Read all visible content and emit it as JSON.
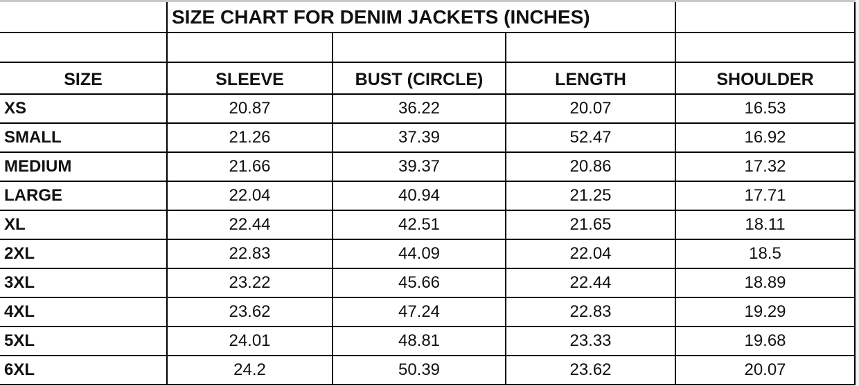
{
  "title": "SIZE CHART FOR DENIM JACKETS (INCHES)",
  "headers": [
    "SIZE",
    "SLEEVE",
    "BUST (CIRCLE)",
    "LENGTH",
    "SHOULDER"
  ],
  "rows": [
    [
      "XS",
      "20.87",
      "36.22",
      "20.07",
      "16.53"
    ],
    [
      "SMALL",
      "21.26",
      "37.39",
      "52.47",
      "16.92"
    ],
    [
      "MEDIUM",
      "21.66",
      "39.37",
      "20.86",
      "17.32"
    ],
    [
      "LARGE",
      "22.04",
      "40.94",
      "21.25",
      "17.71"
    ],
    [
      "XL",
      "22.44",
      "42.51",
      "21.65",
      "18.11"
    ],
    [
      "2XL",
      "22.83",
      "44.09",
      "22.04",
      "18.5"
    ],
    [
      "3XL",
      "23.22",
      "45.66",
      "22.44",
      "18.89"
    ],
    [
      "4XL",
      "23.62",
      "47.24",
      "22.83",
      "19.29"
    ],
    [
      "5XL",
      "24.01",
      "48.81",
      "23.33",
      "19.68"
    ],
    [
      "6XL",
      "24.2",
      "50.39",
      "23.62",
      "20.07"
    ]
  ]
}
